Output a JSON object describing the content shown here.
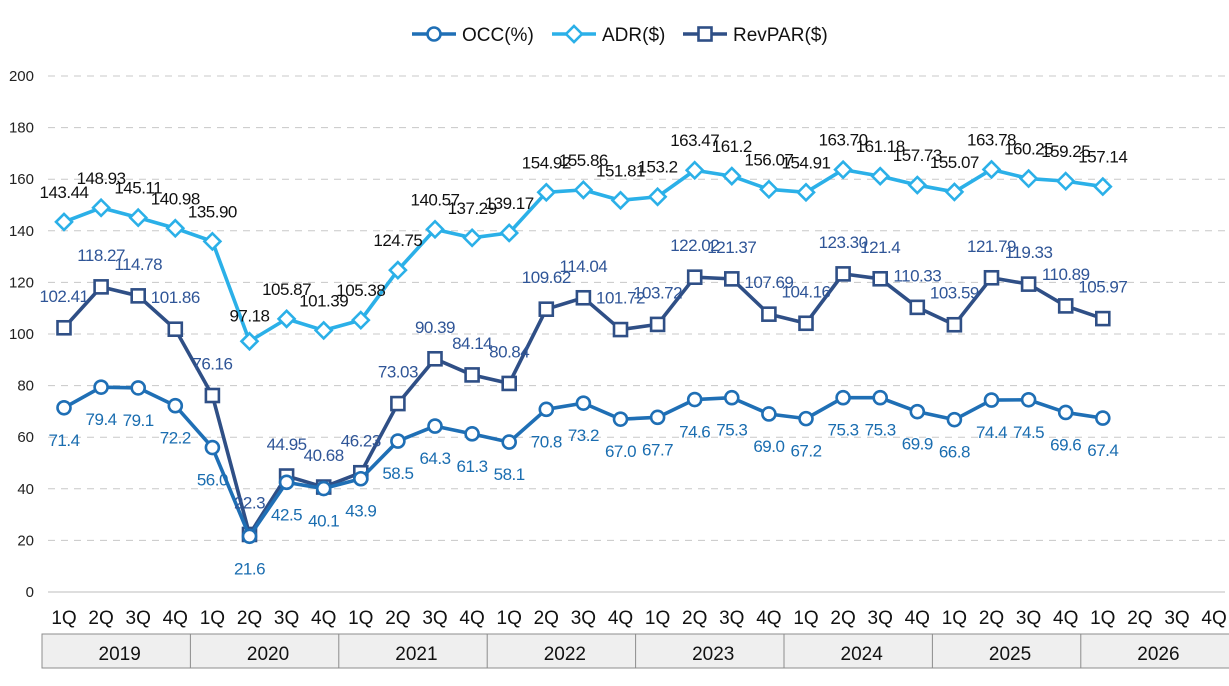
{
  "chart_data": {
    "type": "line",
    "title": "",
    "xlabel": "",
    "ylabel": "",
    "ylim": [
      0,
      200
    ],
    "yticks": [
      "0",
      "20",
      "40",
      "60",
      "80",
      "100",
      "120",
      "140",
      "160",
      "180",
      "200"
    ],
    "grid": "horizontal dashed",
    "legend_position": "top-center",
    "quarters": [
      "1Q",
      "2Q",
      "3Q",
      "4Q",
      "1Q",
      "2Q",
      "3Q",
      "4Q",
      "1Q",
      "2Q",
      "3Q",
      "4Q",
      "1Q",
      "2Q",
      "3Q",
      "4Q",
      "1Q",
      "2Q",
      "3Q",
      "4Q",
      "1Q",
      "2Q",
      "3Q",
      "4Q",
      "1Q",
      "2Q",
      "3Q",
      "4Q",
      "1Q",
      "2Q",
      "3Q",
      "4Q"
    ],
    "years": [
      "2019",
      "2020",
      "2021",
      "2022",
      "2023",
      "2024",
      "2025",
      "2026"
    ],
    "series": [
      {
        "name": "OCC(%)",
        "color": "#1f6fb5",
        "marker": "circle",
        "values": [
          71.4,
          79.4,
          79.1,
          72.2,
          56.0,
          21.6,
          42.5,
          40.1,
          43.9,
          58.5,
          64.3,
          61.3,
          58.1,
          70.8,
          73.2,
          67.0,
          67.7,
          74.6,
          75.3,
          69.0,
          67.2,
          75.3,
          75.3,
          69.9,
          66.8,
          74.4,
          74.5,
          69.6,
          67.4
        ],
        "labels": [
          "71.4",
          "79.4",
          "79.1",
          "72.2",
          "56.0",
          "21.6",
          "42.5",
          "40.1",
          "43.9",
          "58.5",
          "64.3",
          "61.3",
          "58.1",
          "70.8",
          "73.2",
          "67.0",
          "67.7",
          "74.6",
          "75.3",
          "69.0",
          "67.2",
          "75.3",
          "75.3",
          "69.9",
          "66.8",
          "74.4",
          "74.5",
          "69.6",
          "67.4"
        ]
      },
      {
        "name": "ADR($)",
        "color": "#2bb0e8",
        "marker": "diamond",
        "values": [
          143.44,
          148.93,
          145.11,
          140.98,
          135.9,
          97.18,
          105.87,
          101.39,
          105.38,
          124.75,
          140.57,
          137.29,
          139.17,
          154.92,
          155.86,
          151.81,
          153.2,
          163.47,
          161.2,
          156.07,
          154.91,
          163.7,
          161.18,
          157.73,
          155.07,
          163.78,
          160.25,
          159.25,
          157.14
        ],
        "labels": [
          "143.44",
          "148.93",
          "145.11",
          "140.98",
          "135.90",
          "97.18",
          "105.87",
          "101.39",
          "105.38",
          "124.75",
          "140.57",
          "137.29",
          "139.17",
          "154.92",
          "155.86",
          "151.81",
          "153.2",
          "163.47",
          "161.2",
          "156.07",
          "154.91",
          "163.70",
          "161.18",
          "157.73",
          "155.07",
          "163.78",
          "160.25",
          "159.25",
          "157.14"
        ]
      },
      {
        "name": "RevPAR($)",
        "color": "#2f4f86",
        "marker": "square",
        "values": [
          102.41,
          118.27,
          114.78,
          101.86,
          76.16,
          22.3,
          44.95,
          40.68,
          46.23,
          73.03,
          90.39,
          84.14,
          80.84,
          109.62,
          114.04,
          101.72,
          103.72,
          122.02,
          121.37,
          107.69,
          104.16,
          123.3,
          121.4,
          110.33,
          103.59,
          121.79,
          119.33,
          110.89,
          105.97
        ],
        "labels": [
          "102.41",
          "118.27",
          "114.78",
          "101.86",
          "76.16",
          "22.3",
          "44.95",
          "40.68",
          "46.23",
          "73.03",
          "90.39",
          "84.14",
          "80.84",
          "109.62",
          "114.04",
          "101.72",
          "103.72",
          "122.02",
          "121.37",
          "107.69",
          "104.16",
          "123.30",
          "121.4",
          "110.33",
          "103.59",
          "121.79",
          "119.33",
          "110.89",
          "105.97"
        ]
      }
    ]
  }
}
